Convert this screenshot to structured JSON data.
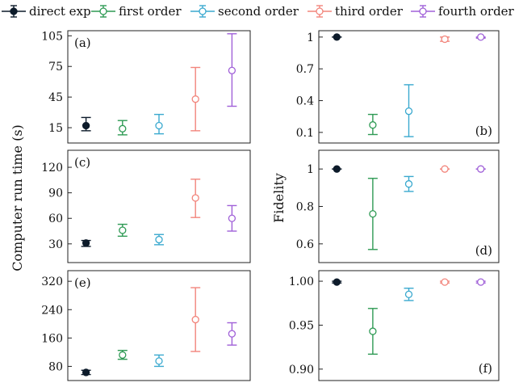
{
  "legend": [
    {
      "label": "direct exp",
      "color": "#0d1b2a"
    },
    {
      "label": "first order",
      "color": "#2e9a54"
    },
    {
      "label": "second order",
      "color": "#3aa9cf"
    },
    {
      "label": "third order",
      "color": "#f2857c"
    },
    {
      "label": "fourth order",
      "color": "#a060d8"
    }
  ],
  "ylabel_left": "Computer run time (s)",
  "ylabel_right": "Fidelity",
  "chart_data": [
    {
      "type": "scatter",
      "panel": "(a)",
      "ylabel": "Computer run time (s)",
      "ylim": [
        0,
        110
      ],
      "yticks": [
        15,
        45,
        75,
        105
      ],
      "points": [
        {
          "series": "direct exp",
          "y": 17,
          "lo": 12,
          "hi": 25
        },
        {
          "series": "first order",
          "y": 14,
          "lo": 8,
          "hi": 22
        },
        {
          "series": "second order",
          "y": 17,
          "lo": 9,
          "hi": 28
        },
        {
          "series": "third order",
          "y": 43,
          "lo": 12,
          "hi": 74
        },
        {
          "series": "fourth order",
          "y": 71,
          "lo": 36,
          "hi": 107
        }
      ]
    },
    {
      "type": "scatter",
      "panel": "(b)",
      "ylabel": "Fidelity",
      "ylim": [
        0,
        1.06
      ],
      "yticks": [
        0.1,
        0.4,
        0.7,
        1.0
      ],
      "points": [
        {
          "series": "direct exp",
          "y": 1.0,
          "lo": 1.0,
          "hi": 1.0
        },
        {
          "series": "first order",
          "y": 0.17,
          "lo": 0.08,
          "hi": 0.27
        },
        {
          "series": "second order",
          "y": 0.3,
          "lo": 0.06,
          "hi": 0.55
        },
        {
          "series": "third order",
          "y": 0.98,
          "lo": 0.96,
          "hi": 1.0
        },
        {
          "series": "fourth order",
          "y": 1.0,
          "lo": 0.99,
          "hi": 1.0
        }
      ]
    },
    {
      "type": "scatter",
      "panel": "(c)",
      "ylabel": "Computer run time (s)",
      "ylim": [
        8,
        140
      ],
      "yticks": [
        30,
        60,
        90,
        120
      ],
      "points": [
        {
          "series": "direct exp",
          "y": 31,
          "lo": 27,
          "hi": 34
        },
        {
          "series": "first order",
          "y": 46,
          "lo": 39,
          "hi": 53
        },
        {
          "series": "second order",
          "y": 35,
          "lo": 29,
          "hi": 41
        },
        {
          "series": "third order",
          "y": 84,
          "lo": 61,
          "hi": 106
        },
        {
          "series": "fourth order",
          "y": 60,
          "lo": 45,
          "hi": 75
        }
      ]
    },
    {
      "type": "scatter",
      "panel": "(d)",
      "ylabel": "Fidelity",
      "ylim": [
        0.5,
        1.1
      ],
      "yticks": [
        0.6,
        0.8,
        1.0
      ],
      "points": [
        {
          "series": "direct exp",
          "y": 1.0,
          "lo": 1.0,
          "hi": 1.0
        },
        {
          "series": "first order",
          "y": 0.76,
          "lo": 0.57,
          "hi": 0.95
        },
        {
          "series": "second order",
          "y": 0.92,
          "lo": 0.88,
          "hi": 0.96
        },
        {
          "series": "third order",
          "y": 1.0,
          "lo": 1.0,
          "hi": 1.0
        },
        {
          "series": "fourth order",
          "y": 1.0,
          "lo": 1.0,
          "hi": 1.0
        }
      ]
    },
    {
      "type": "scatter",
      "panel": "(e)",
      "ylabel": "Computer run time (s)",
      "ylim": [
        40,
        350
      ],
      "yticks": [
        80,
        160,
        240,
        320
      ],
      "points": [
        {
          "series": "direct exp",
          "y": 63,
          "lo": 57,
          "hi": 69
        },
        {
          "series": "first order",
          "y": 112,
          "lo": 100,
          "hi": 125
        },
        {
          "series": "second order",
          "y": 95,
          "lo": 80,
          "hi": 112
        },
        {
          "series": "third order",
          "y": 212,
          "lo": 122,
          "hi": 302
        },
        {
          "series": "fourth order",
          "y": 172,
          "lo": 140,
          "hi": 203
        }
      ]
    },
    {
      "type": "scatter",
      "panel": "(f)",
      "ylabel": "Fidelity",
      "ylim": [
        0.887,
        1.012
      ],
      "yticks": [
        0.9,
        0.95,
        1.0
      ],
      "ytick_labels": [
        "0.90",
        "0.95",
        "1.00"
      ],
      "points": [
        {
          "series": "direct exp",
          "y": 0.999,
          "lo": 0.998,
          "hi": 1.0
        },
        {
          "series": "first order",
          "y": 0.943,
          "lo": 0.917,
          "hi": 0.969
        },
        {
          "series": "second order",
          "y": 0.985,
          "lo": 0.978,
          "hi": 0.992
        },
        {
          "series": "third order",
          "y": 0.999,
          "lo": 0.998,
          "hi": 1.0
        },
        {
          "series": "fourth order",
          "y": 0.999,
          "lo": 0.998,
          "hi": 1.0
        }
      ]
    }
  ]
}
